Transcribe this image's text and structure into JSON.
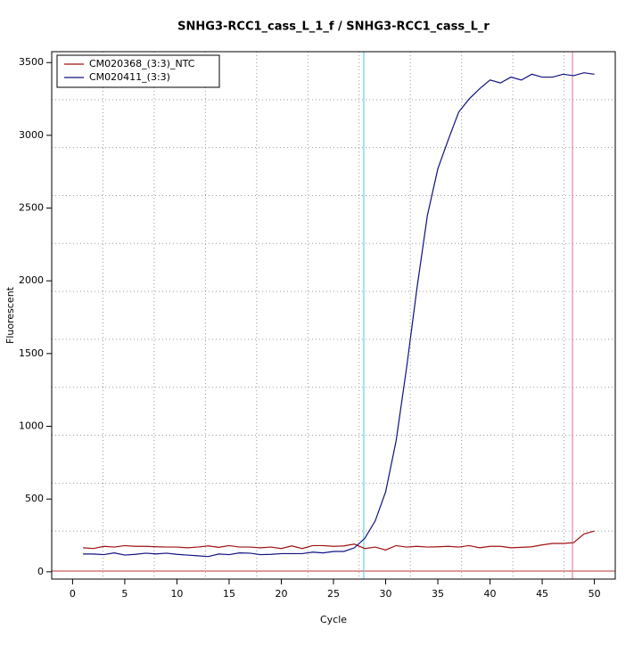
{
  "chart_data": {
    "type": "line",
    "title": "SNHG3-RCC1_cass_L_1_f / SNHG3-RCC1_cass_L_r",
    "x_label": "Cycle",
    "y_label": "Fluorescent",
    "x": [
      1,
      2,
      3,
      4,
      5,
      6,
      7,
      8,
      9,
      10,
      11,
      12,
      13,
      14,
      15,
      16,
      17,
      18,
      19,
      20,
      21,
      22,
      23,
      24,
      25,
      26,
      27,
      28,
      29,
      30,
      31,
      32,
      33,
      34,
      35,
      36,
      37,
      38,
      39,
      40,
      41,
      42,
      43,
      44,
      45,
      46,
      47,
      48,
      49,
      50
    ],
    "series": [
      {
        "name": "CM020368_(3:3)_NTC",
        "color": "#a01010",
        "values": [
          165,
          160,
          175,
          170,
          180,
          175,
          175,
          172,
          170,
          170,
          165,
          170,
          178,
          168,
          180,
          170,
          170,
          165,
          170,
          160,
          178,
          160,
          180,
          180,
          175,
          178,
          190,
          160,
          170,
          150,
          180,
          170,
          175,
          170,
          172,
          175,
          170,
          180,
          165,
          175,
          175,
          165,
          168,
          172,
          185,
          195,
          195,
          200,
          260,
          280
        ]
      },
      {
        "name": "CM020411_(3:3)",
        "color": "#101080",
        "values": [
          122,
          122,
          118,
          130,
          115,
          120,
          128,
          123,
          128,
          120,
          115,
          110,
          105,
          122,
          118,
          130,
          128,
          118,
          120,
          125,
          125,
          125,
          135,
          130,
          140,
          140,
          165,
          230,
          350,
          550,
          900,
          1400,
          1950,
          2450,
          2770,
          2970,
          3160,
          3250,
          3320,
          3380,
          3360,
          3400,
          3380,
          3420,
          3400,
          3400,
          3420,
          3410,
          3430,
          3420
        ]
      }
    ],
    "xlim": [
      -2,
      52
    ],
    "xticks": [
      0,
      5,
      10,
      15,
      20,
      25,
      30,
      35,
      40,
      45,
      50
    ],
    "ylim": [
      -50,
      3575
    ],
    "yticks": [
      0,
      500,
      1000,
      1500,
      2000,
      2500,
      3000,
      3500
    ],
    "grid": true,
    "grid_divisions": 11,
    "legend": "top-left",
    "vlines": [
      {
        "x": 27.9,
        "color": "#40d0e0"
      },
      {
        "x": 47.9,
        "color": "#e07090"
      }
    ],
    "hlines": [
      {
        "y": 5,
        "color": "#c03030"
      }
    ]
  }
}
